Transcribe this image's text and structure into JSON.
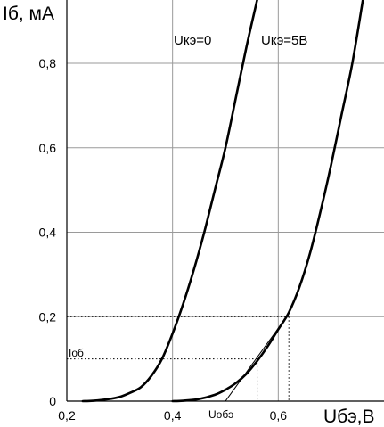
{
  "chart_data": {
    "type": "line",
    "title": "",
    "xlabel": "Uбэ,В",
    "ylabel": "Iб, мА",
    "xlim": [
      0.2,
      0.8
    ],
    "ylim": [
      0,
      0.95
    ],
    "grid": true,
    "x_ticks": [
      {
        "value": 0.2,
        "label": "0,2"
      },
      {
        "value": 0.4,
        "label": "0,4"
      },
      {
        "value": 0.6,
        "label": "0,6"
      }
    ],
    "y_ticks": [
      {
        "value": 0,
        "label": "0"
      },
      {
        "value": 0.2,
        "label": "0,2"
      },
      {
        "value": 0.4,
        "label": "0,4"
      },
      {
        "value": 0.6,
        "label": "0,6"
      },
      {
        "value": 0.8,
        "label": "0,8"
      }
    ],
    "series": [
      {
        "name": "Uкэ=0",
        "x": [
          0.23,
          0.25,
          0.28,
          0.3,
          0.32,
          0.34,
          0.36,
          0.38,
          0.4,
          0.42,
          0.44,
          0.46,
          0.48,
          0.5,
          0.52,
          0.54,
          0.56
        ],
        "y": [
          0.0,
          0.001,
          0.005,
          0.01,
          0.02,
          0.033,
          0.06,
          0.1,
          0.16,
          0.23,
          0.31,
          0.4,
          0.5,
          0.6,
          0.72,
          0.84,
          0.95
        ]
      },
      {
        "name": "Uкэ=5В",
        "x": [
          0.4,
          0.42,
          0.45,
          0.48,
          0.5,
          0.52,
          0.54,
          0.56,
          0.58,
          0.6,
          0.62,
          0.64,
          0.66,
          0.68,
          0.7,
          0.72,
          0.74,
          0.76
        ],
        "y": [
          0.0,
          0.001,
          0.005,
          0.015,
          0.027,
          0.043,
          0.065,
          0.095,
          0.13,
          0.17,
          0.21,
          0.27,
          0.35,
          0.45,
          0.56,
          0.68,
          0.8,
          0.95
        ]
      }
    ],
    "annotations": [
      {
        "label": "Iоб",
        "x": 0.56,
        "y": 0.1
      },
      {
        "label": "Uобэ",
        "x": 0.56,
        "y": 0.1
      }
    ],
    "reference_lines": [
      {
        "x": 0.56,
        "y": 0.1
      },
      {
        "x": 0.62,
        "y": 0.2
      }
    ],
    "tangent": {
      "x": [
        0.5,
        0.61
      ],
      "y": [
        0.0,
        0.19
      ]
    }
  }
}
